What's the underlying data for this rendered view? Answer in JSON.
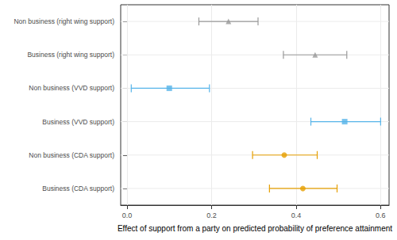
{
  "chart_data": {
    "type": "dot_errorbar",
    "orientation": "horizontal",
    "x_label": "Effect of support from a party on predicted probability of preference attainment",
    "categories": [
      "Non business (right wing support)",
      "Business (right wing support)",
      "Non business (VVD support)",
      "Business (VVD support)",
      "Non business (CDA support)",
      "Business (CDA support)"
    ],
    "series": [
      {
        "color": "#999999",
        "marker": "triangle",
        "values": [
          0.24,
          0.445,
          null,
          null,
          null,
          null
        ],
        "ci_low": [
          0.17,
          0.37,
          null,
          null,
          null,
          null
        ],
        "ci_high": [
          0.31,
          0.52,
          null,
          null,
          null,
          null
        ]
      },
      {
        "color": "#56B4E9",
        "marker": "square",
        "values": [
          null,
          null,
          0.1,
          0.515,
          null,
          null
        ],
        "ci_low": [
          null,
          null,
          0.01,
          0.435,
          null,
          null
        ],
        "ci_high": [
          null,
          null,
          0.195,
          0.6,
          null,
          null
        ]
      },
      {
        "color": "#E69F00",
        "marker": "circle",
        "values": [
          null,
          null,
          null,
          null,
          0.372,
          0.416
        ],
        "ci_low": [
          null,
          null,
          null,
          null,
          0.297,
          0.337
        ],
        "ci_high": [
          null,
          null,
          null,
          null,
          0.45,
          0.497
        ]
      }
    ],
    "xlim": [
      -0.015,
      0.62
    ],
    "xticks": [
      {
        "value": 0,
        "label": "0.0"
      },
      0.2,
      0.4,
      0.6
    ],
    "grid": true
  }
}
